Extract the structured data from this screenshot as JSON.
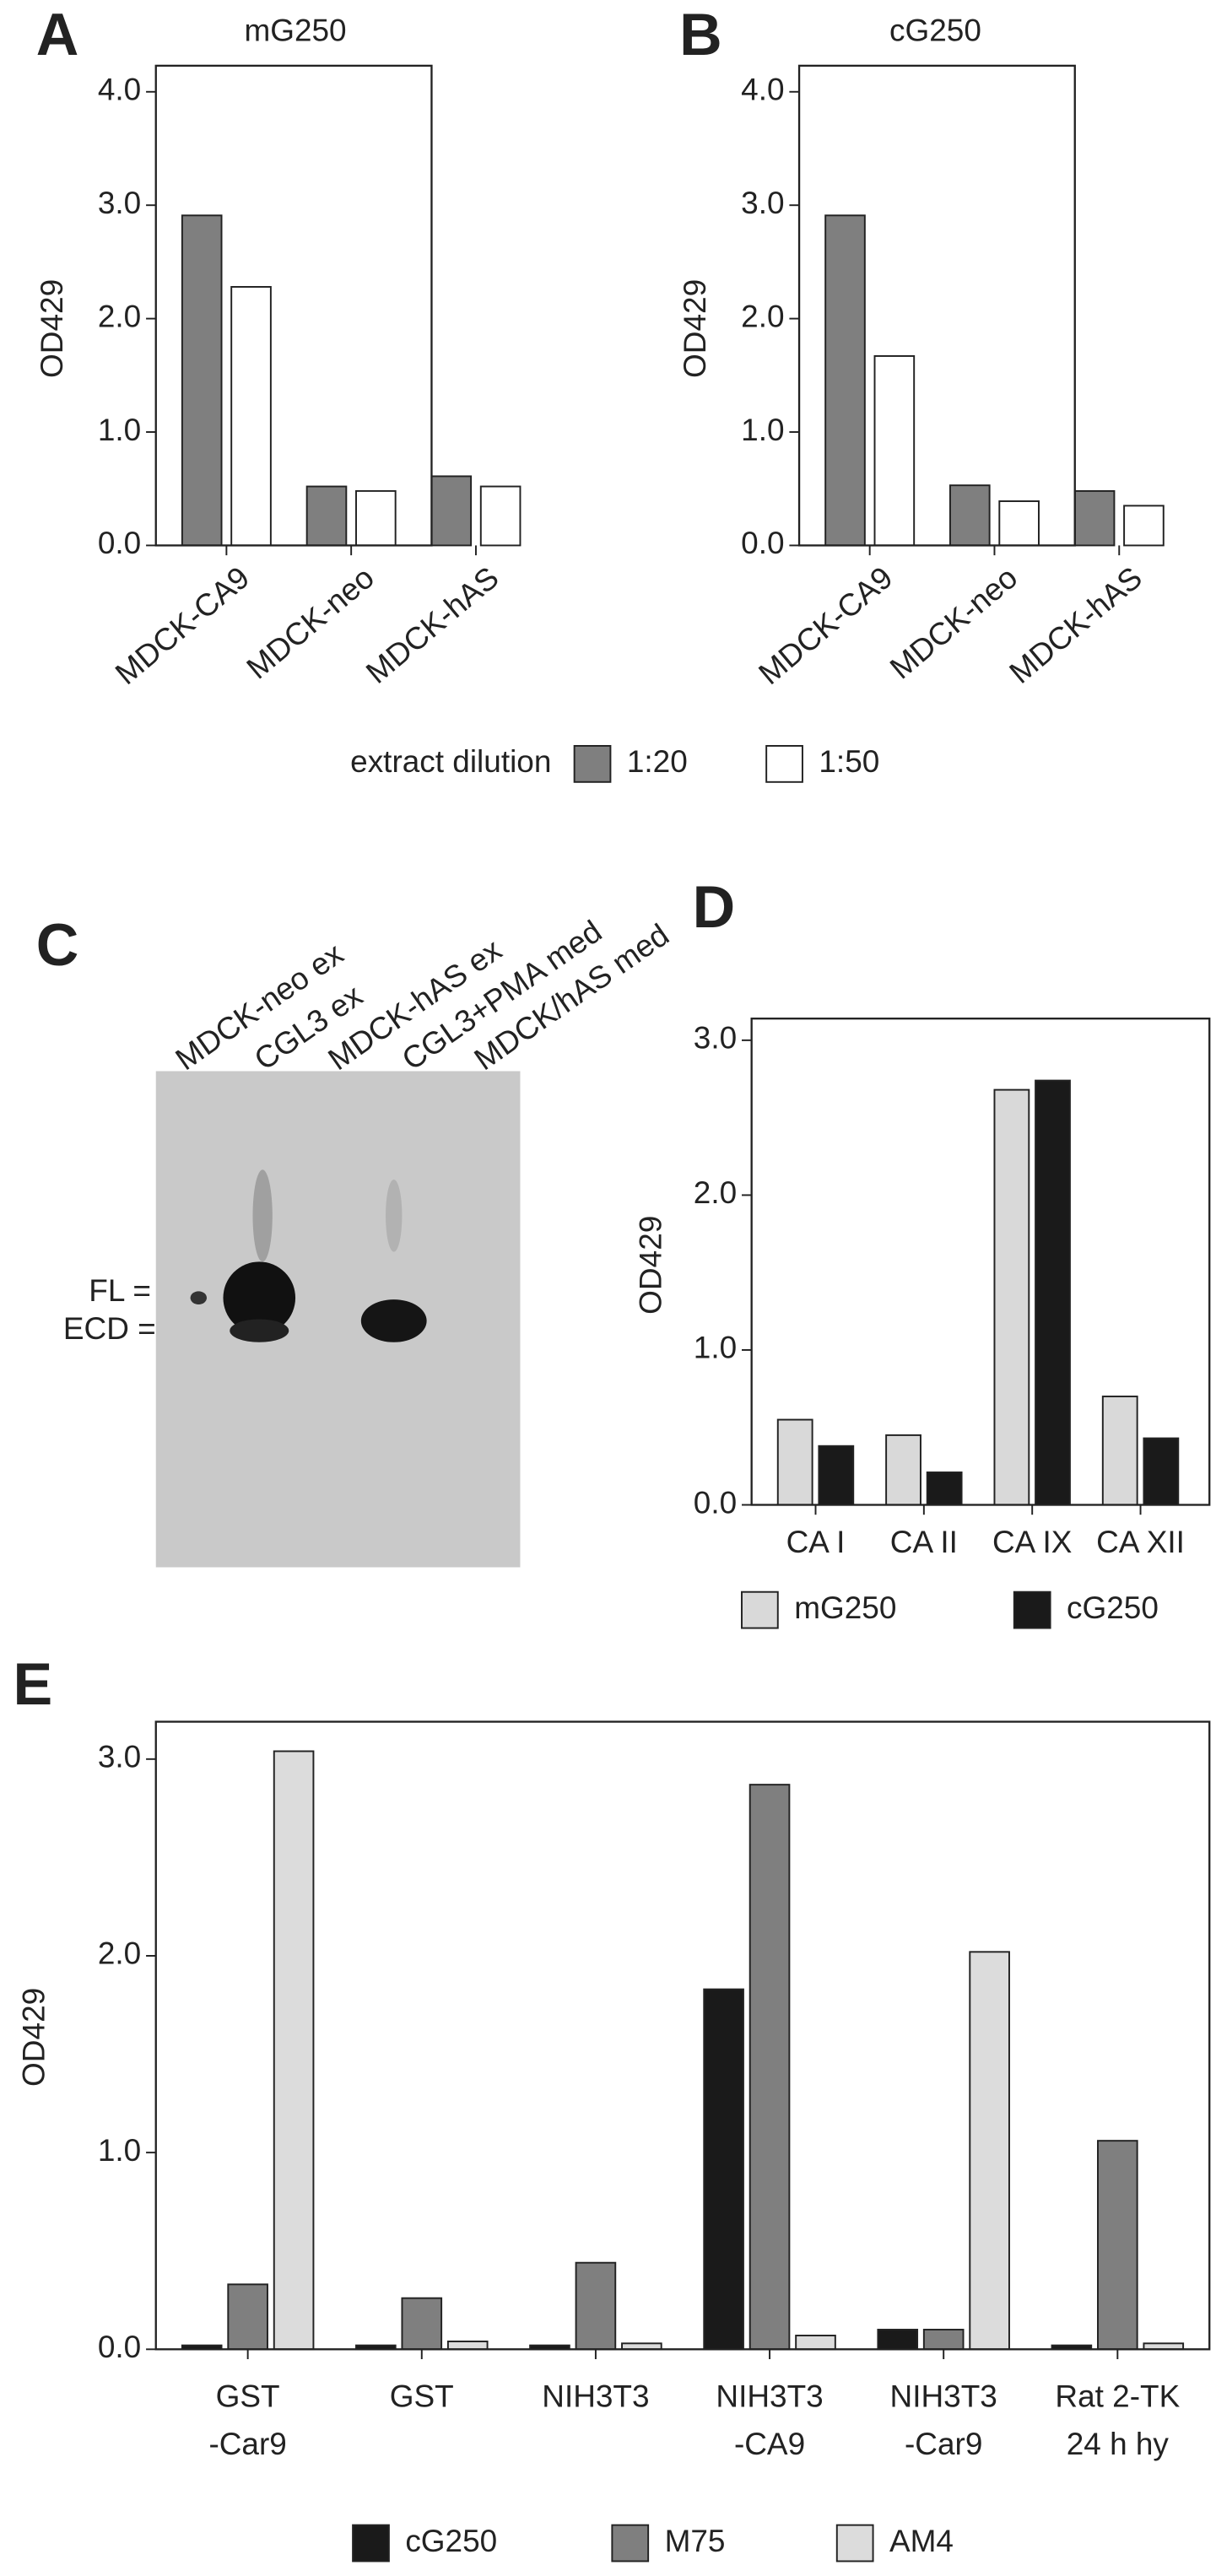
{
  "blot": {
    "panel": "C",
    "lanes": [
      "MDCK-neo ex",
      "CGL3 ex",
      "MDCK-hAS ex",
      "CGL3+PMA med",
      "MDCK/hAS med"
    ],
    "bands": [
      "FL =",
      "ECD ="
    ]
  },
  "chart_data": [
    {
      "type": "bar",
      "panel": "A",
      "title": "mG250",
      "y_label": "OD429",
      "categories": [
        "MDCK-CA9",
        "MDCK-neo",
        "MDCK-hAS"
      ],
      "legend_title": "extract dilution",
      "series": [
        {
          "name": "1:20",
          "color": "#7f7f7f",
          "values": [
            2.91,
            0.52,
            0.61
          ]
        },
        {
          "name": "1:50",
          "color": "#ffffff",
          "values": [
            2.28,
            0.48,
            0.52
          ]
        }
      ],
      "ylim": [
        0,
        4.23
      ],
      "yticks": [
        {
          "value": 0,
          "label": "0.0"
        },
        {
          "value": 1,
          "label": "1.0"
        },
        {
          "value": 2,
          "label": "2.0"
        },
        {
          "value": 3,
          "label": "3.0"
        },
        {
          "value": 4,
          "label": "4.0"
        }
      ]
    },
    {
      "type": "bar",
      "panel": "B",
      "title": "cG250",
      "y_label": "OD429",
      "categories": [
        "MDCK-CA9",
        "MDCK-neo",
        "MDCK-hAS"
      ],
      "series": [
        {
          "color": "#7f7f7f",
          "values": [
            2.91,
            0.53,
            0.48
          ]
        },
        {
          "color": "#ffffff",
          "values": [
            1.67,
            0.39,
            0.35
          ]
        }
      ],
      "ylim": [
        0,
        4.23
      ],
      "yticks": [
        {
          "value": 0,
          "label": "0.0"
        },
        {
          "value": 1,
          "label": "1.0"
        },
        {
          "value": 2,
          "label": "2.0"
        },
        {
          "value": 3,
          "label": "3.0"
        },
        {
          "value": 4,
          "label": "4.0"
        }
      ]
    },
    {
      "type": "bar",
      "panel": "D",
      "y_label": "OD429",
      "categories": [
        "CA I",
        "CA II",
        "CA IX",
        "CA XII"
      ],
      "series": [
        {
          "name": "mG250",
          "color": "#d9d9d9",
          "values": [
            0.55,
            0.45,
            2.68,
            0.7
          ]
        },
        {
          "name": "cG250",
          "color": "#1a1a1a",
          "values": [
            0.38,
            0.21,
            2.74,
            0.43
          ]
        }
      ],
      "ylim": [
        0,
        3.14
      ],
      "yticks": [
        {
          "value": 0,
          "label": "0.0"
        },
        {
          "value": 1,
          "label": "1.0"
        },
        {
          "value": 2,
          "label": "2.0"
        },
        {
          "value": 3,
          "label": "3.0"
        }
      ]
    },
    {
      "type": "bar",
      "panel": "E",
      "y_label": "OD429",
      "categories": [
        [
          "GST",
          "-Car9"
        ],
        [
          "GST"
        ],
        [
          "NIH3T3"
        ],
        [
          "NIH3T3",
          "-CA9"
        ],
        [
          "NIH3T3",
          "-Car9"
        ],
        [
          "Rat 2-TK",
          "24 h hy"
        ]
      ],
      "series": [
        {
          "name": "cG250",
          "color": "#1a1a1a",
          "values": [
            0.02,
            0.02,
            0.02,
            1.83,
            0.1,
            0.02
          ]
        },
        {
          "name": "M75",
          "color": "#7f7f7f",
          "values": [
            0.33,
            0.26,
            0.44,
            2.87,
            0.1,
            1.06
          ]
        },
        {
          "name": "AM4",
          "color": "#dcdcdc",
          "values": [
            3.04,
            0.04,
            0.03,
            0.07,
            2.02,
            0.03
          ]
        }
      ],
      "ylim": [
        0,
        3.19
      ],
      "yticks": [
        {
          "value": 0,
          "label": "0.0"
        },
        {
          "value": 1,
          "label": "1.0"
        },
        {
          "value": 2,
          "label": "2.0"
        },
        {
          "value": 3,
          "label": "3.0"
        }
      ]
    }
  ]
}
